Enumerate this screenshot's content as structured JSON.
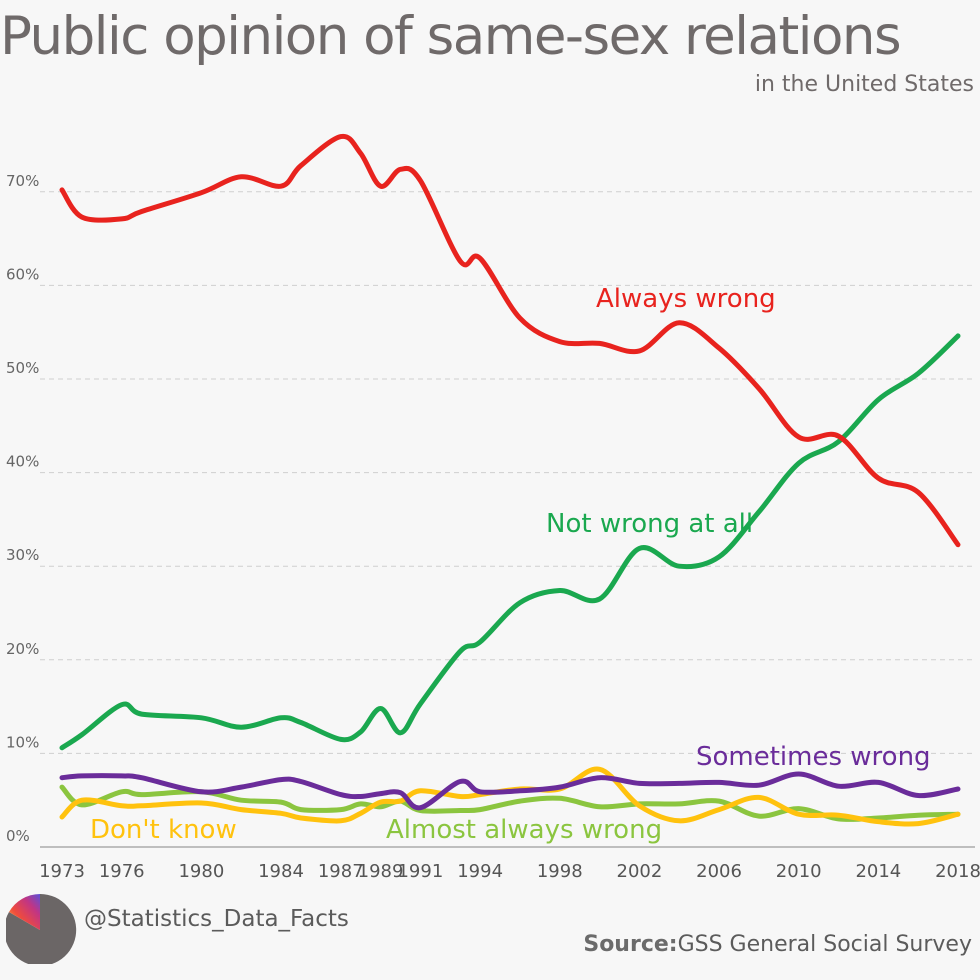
{
  "header": {
    "title": "Public opinion of same-sex relations",
    "subtitle": "in the United States"
  },
  "footer": {
    "handle": "@Statistics_Data_Facts",
    "source_label": "Source:",
    "source_text": "GSS General Social Survey"
  },
  "chart_data": {
    "type": "line",
    "title": "Public opinion of same-sex relations",
    "subtitle": "in the United States",
    "xlabel": "",
    "ylabel": "",
    "ylim": [
      0,
      75
    ],
    "grid": true,
    "legend": "inline labels",
    "y_ticks": [
      "0%",
      "10%",
      "20%",
      "30%",
      "40%",
      "50%",
      "60%",
      "70%"
    ],
    "x_ticks": [
      "1973",
      "1976",
      "1980",
      "1984",
      "1987",
      "1989",
      "1991",
      "1994",
      "1998",
      "2002",
      "2006",
      "2010",
      "2014",
      "2018"
    ],
    "x": [
      "1973",
      "1974",
      "1976",
      "1977",
      "1980",
      "1982",
      "1984",
      "1985",
      "1987",
      "1988",
      "1989",
      "1990",
      "1991",
      "1993",
      "1994",
      "1996",
      "1998",
      "2000",
      "2002",
      "2004",
      "2006",
      "2008",
      "2010",
      "2012",
      "2014",
      "2016",
      "2018"
    ],
    "series": [
      {
        "name": "Always wrong",
        "color": "#e8231e",
        "values": [
          70.2,
          67.3,
          67.1,
          67.9,
          69.9,
          71.6,
          70.6,
          72.8,
          75.9,
          74.1,
          70.6,
          72.4,
          71.2,
          62.6,
          62.9,
          56.5,
          54.0,
          53.8,
          53.0,
          56.0,
          53.3,
          49.0,
          43.8,
          43.9,
          39.4,
          37.9,
          32.3
        ]
      },
      {
        "name": "Not wrong at all",
        "color": "#1aa84f",
        "values": [
          10.6,
          12.0,
          15.2,
          14.2,
          13.8,
          12.8,
          13.8,
          13.3,
          11.5,
          12.3,
          14.8,
          12.2,
          15.3,
          20.9,
          21.9,
          26.1,
          27.4,
          26.5,
          31.9,
          30.0,
          31.0,
          35.8,
          41.0,
          43.3,
          47.8,
          50.6,
          54.6
        ]
      },
      {
        "name": "Sometimes wrong",
        "color": "#6a2c9a",
        "values": [
          7.4,
          7.6,
          7.6,
          7.4,
          5.9,
          6.4,
          7.2,
          7.0,
          5.6,
          5.4,
          5.7,
          5.8,
          4.2,
          7.0,
          5.9,
          6.0,
          6.4,
          7.4,
          6.8,
          6.8,
          6.9,
          6.6,
          7.8,
          6.5,
          6.9,
          5.5,
          6.2
        ]
      },
      {
        "name": "Don't know",
        "color": "#ffc20e",
        "values": [
          3.2,
          5.0,
          4.4,
          4.4,
          4.7,
          4.0,
          3.6,
          3.1,
          2.8,
          3.6,
          4.8,
          4.9,
          6.0,
          5.4,
          5.6,
          6.2,
          6.2,
          8.3,
          4.4,
          2.8,
          4.0,
          5.3,
          3.5,
          3.4,
          2.7,
          2.5,
          3.5
        ]
      },
      {
        "name": "Almost always wrong",
        "color": "#8bc53f",
        "values": [
          6.4,
          4.5,
          5.9,
          5.6,
          5.9,
          5.0,
          4.8,
          4.0,
          4.0,
          4.6,
          4.3,
          4.9,
          3.9,
          3.9,
          4.0,
          4.9,
          5.2,
          4.3,
          4.6,
          4.6,
          4.9,
          3.3,
          4.1,
          3.0,
          3.1,
          3.4,
          3.5
        ]
      }
    ]
  }
}
